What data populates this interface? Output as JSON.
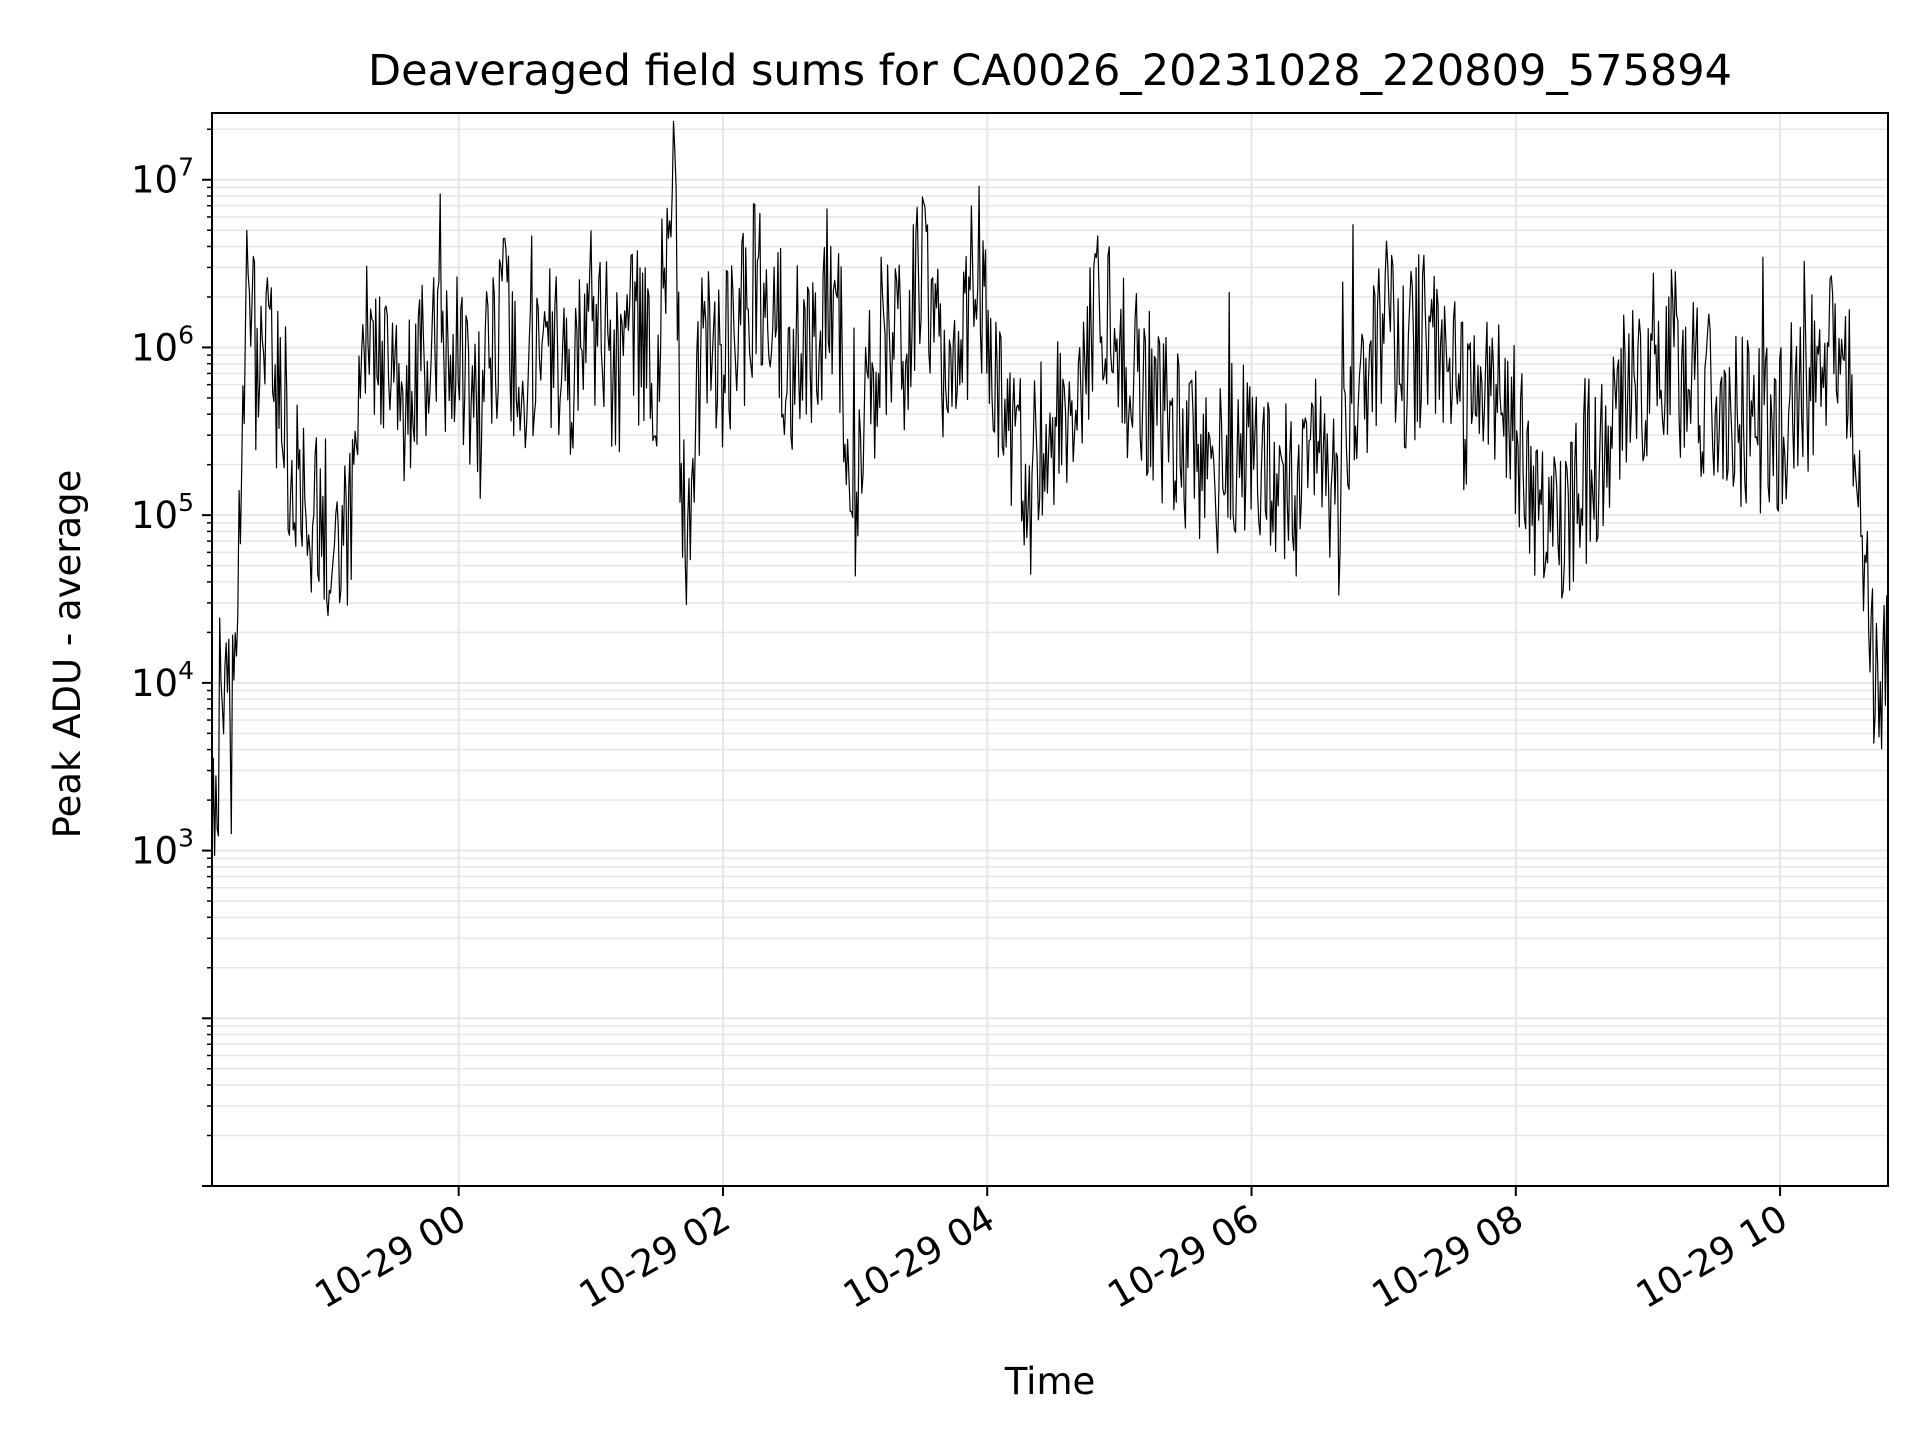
{
  "chart_data": {
    "type": "line",
    "title": "Deaveraged field sums for CA0026_20231028_220809_575894",
    "xlabel": "Time",
    "ylabel": "Peak ADU - average",
    "yscale": "log",
    "ylim": [
      10,
      25000000
    ],
    "xlim": [
      "2023-10-28 22:08",
      "2023-10-29 10:49"
    ],
    "x_ticks": [
      {
        "value": "2023-10-29 00:00",
        "label": "10-29 00"
      },
      {
        "value": "2023-10-29 02:00",
        "label": "10-29 02"
      },
      {
        "value": "2023-10-29 04:00",
        "label": "10-29 04"
      },
      {
        "value": "2023-10-29 06:00",
        "label": "10-29 06"
      },
      {
        "value": "2023-10-29 08:00",
        "label": "10-29 08"
      },
      {
        "value": "2023-10-29 10:00",
        "label": "10-29 10"
      }
    ],
    "y_ticks": [
      {
        "value": 1000,
        "base": "10",
        "exp": "3"
      },
      {
        "value": 10000,
        "base": "10",
        "exp": "4"
      },
      {
        "value": 100000,
        "base": "10",
        "exp": "5"
      },
      {
        "value": 1000000,
        "base": "10",
        "exp": "6"
      },
      {
        "value": 10000000,
        "base": "10",
        "exp": "7"
      }
    ],
    "grid": true,
    "line_color": "#000000",
    "grid_color": "#e6e6e6",
    "series": [
      {
        "x": [
          "2023-10-28 22:08",
          "2023-10-28 22:10",
          "2023-10-28 22:12",
          "2023-10-28 22:15",
          "2023-10-28 22:18",
          "2023-10-28 22:22",
          "2023-10-28 22:26",
          "2023-10-28 22:30",
          "2023-10-28 22:35",
          "2023-10-28 22:40",
          "2023-10-28 22:45",
          "2023-10-28 22:50",
          "2023-10-28 22:55",
          "2023-10-28 23:00",
          "2023-10-28 23:05",
          "2023-10-28 23:10",
          "2023-10-28 23:15",
          "2023-10-28 23:20",
          "2023-10-28 23:25",
          "2023-10-28 23:30",
          "2023-10-28 23:35",
          "2023-10-28 23:40",
          "2023-10-28 23:45",
          "2023-10-28 23:50",
          "2023-10-28 23:55",
          "2023-10-29 00:00",
          "2023-10-29 00:10",
          "2023-10-29 00:20",
          "2023-10-29 00:30",
          "2023-10-29 00:40",
          "2023-10-29 00:50",
          "2023-10-29 01:00",
          "2023-10-29 01:10",
          "2023-10-29 01:20",
          "2023-10-29 01:30",
          "2023-10-29 01:38",
          "2023-10-29 01:42",
          "2023-10-29 01:50",
          "2023-10-29 02:00",
          "2023-10-29 02:10",
          "2023-10-29 02:20",
          "2023-10-29 02:30",
          "2023-10-29 02:40",
          "2023-10-29 02:50",
          "2023-10-29 03:00",
          "2023-10-29 03:10",
          "2023-10-29 03:20",
          "2023-10-29 03:30",
          "2023-10-29 03:40",
          "2023-10-29 03:50",
          "2023-10-29 03:55",
          "2023-10-29 04:00",
          "2023-10-29 04:10",
          "2023-10-29 04:20",
          "2023-10-29 04:30",
          "2023-10-29 04:40",
          "2023-10-29 04:50",
          "2023-10-29 05:00",
          "2023-10-29 05:10",
          "2023-10-29 05:20",
          "2023-10-29 05:30",
          "2023-10-29 05:40",
          "2023-10-29 05:50",
          "2023-10-29 06:00",
          "2023-10-29 06:10",
          "2023-10-29 06:20",
          "2023-10-29 06:30",
          "2023-10-29 06:40",
          "2023-10-29 06:50",
          "2023-10-29 07:00",
          "2023-10-29 07:10",
          "2023-10-29 07:20",
          "2023-10-29 07:30",
          "2023-10-29 07:40",
          "2023-10-29 07:50",
          "2023-10-29 08:00",
          "2023-10-29 08:10",
          "2023-10-29 08:20",
          "2023-10-29 08:30",
          "2023-10-29 08:40",
          "2023-10-29 08:50",
          "2023-10-29 09:00",
          "2023-10-29 09:10",
          "2023-10-29 09:20",
          "2023-10-29 09:30",
          "2023-10-29 09:40",
          "2023-10-29 09:50",
          "2023-10-29 10:00",
          "2023-10-29 10:10",
          "2023-10-29 10:20",
          "2023-10-29 10:30",
          "2023-10-29 10:35",
          "2023-10-29 10:40",
          "2023-10-29 10:45",
          "2023-10-29 10:49"
        ],
        "y": [
          3000,
          700,
          20000,
          8000,
          5000,
          900000,
          2500000,
          500000,
          1000000,
          300000,
          150000,
          100000,
          90000,
          80000,
          85000,
          90000,
          400000,
          1500000,
          500000,
          800000,
          400000,
          900000,
          600000,
          1200000,
          700000,
          900000,
          500000,
          1500000,
          400000,
          1000000,
          600000,
          1800000,
          700000,
          1200000,
          900000,
          14000000,
          35000,
          900000,
          700000,
          2000000,
          3000000,
          800000,
          1200000,
          2500000,
          150000,
          1200000,
          900000,
          2500000,
          600000,
          1200000,
          4000000,
          1500000,
          300000,
          150000,
          400000,
          200000,
          1800000,
          900000,
          600000,
          400000,
          250000,
          150000,
          300000,
          200000,
          150000,
          120000,
          200000,
          150000,
          600000,
          1500000,
          800000,
          1200000,
          600000,
          400000,
          500000,
          300000,
          120000,
          60000,
          150000,
          300000,
          500000,
          800000,
          900000,
          600000,
          500000,
          400000,
          300000,
          350000,
          500000,
          900000,
          600000,
          400000,
          20000,
          10000,
          12000
        ],
        "density": 1300,
        "seed": 42
      }
    ]
  }
}
